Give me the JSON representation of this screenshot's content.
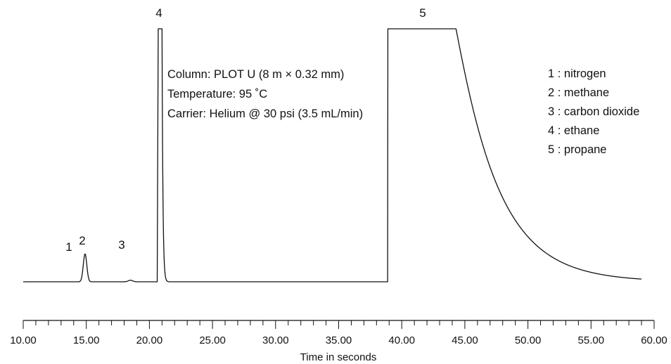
{
  "chart_data": {
    "type": "line",
    "title": "",
    "xlabel": "Time in seconds",
    "ylabel": "",
    "xlim": [
      10,
      60
    ],
    "x_major_ticks": [
      "10.00",
      "15.00",
      "20.00",
      "25.00",
      "30.00",
      "35.00",
      "40.00",
      "45.00",
      "50.00",
      "55.00",
      "60.00"
    ],
    "x_minor_step": 1,
    "grid": false,
    "y_axis_shown": false,
    "baseline_signal": 0,
    "signal_scale": "normalized, 1 = top of tallest peak",
    "peaks": [
      {
        "label": "1",
        "time": 14.3,
        "height": 0.0
      },
      {
        "label": "2",
        "time": 14.9,
        "height": 0.11
      },
      {
        "label": "3",
        "time": 18.5,
        "height": 0.006
      },
      {
        "label": "4",
        "time": 20.9,
        "height": 1.0,
        "flat_top_from": 20.7,
        "flat_top_to": 21.0
      },
      {
        "label": "5",
        "time": 41.5,
        "height": 1.0,
        "flat_top_from": 38.9,
        "flat_top_to": 44.3,
        "tail_to": 59
      }
    ],
    "trace_range": [
      10,
      59
    ]
  },
  "annotation": {
    "lines": [
      "Column: PLOT U (8 m × 0.32 mm)",
      "Temperature: 95 ˚C",
      "Carrier: Helium @ 30 psi (3.5 mL/min)"
    ]
  },
  "legend": {
    "position": "top-right",
    "items": [
      "1 : nitrogen",
      "2 : methane",
      "3 : carbon dioxide",
      "4 : ethane",
      "5 : propane"
    ]
  }
}
